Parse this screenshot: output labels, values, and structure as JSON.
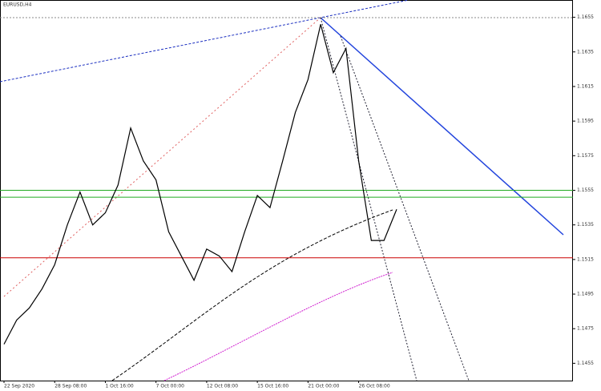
{
  "chart_data": {
    "type": "line",
    "title": "EURUSD,H4",
    "categories": [
      "22 Sep 2020",
      null,
      null,
      null,
      "28 Sep 08:00",
      null,
      null,
      null,
      "1 Oct 16:00",
      null,
      null,
      null,
      "7 Oct 00:00",
      null,
      null,
      null,
      "12 Oct 08:00",
      null,
      null,
      null,
      "15 Oct 16:00",
      null,
      null,
      null,
      "21 Oct 00:00",
      null,
      null,
      null,
      "26 Oct 08:00",
      null,
      null,
      null
    ],
    "series": [
      {
        "name": "Close",
        "color": "#000000",
        "values": [
          1.1466,
          1.148,
          1.1487,
          1.1498,
          1.1512,
          1.1535,
          1.1554,
          1.1535,
          1.1542,
          1.1558,
          1.1591,
          1.1572,
          1.1561,
          1.1531,
          1.1517,
          1.1503,
          1.1521,
          1.1517,
          1.1508,
          1.1531,
          1.1552,
          1.1545,
          1.1572,
          1.16,
          1.1619,
          1.1651,
          1.1623,
          1.1637,
          1.1572,
          1.1526,
          1.1526,
          1.1544
        ]
      }
    ],
    "levels": [
      {
        "value": 1.1555,
        "color": "#22aa22"
      },
      {
        "value": 1.1551,
        "color": "#22aa22"
      },
      {
        "value": 1.1516,
        "color": "#cc0000"
      }
    ],
    "ylim": [
      1.1445,
      1.1665
    ],
    "yticks": [
      1.1455,
      1.1475,
      1.1495,
      1.1515,
      1.1535,
      1.1555,
      1.1575,
      1.1595,
      1.1615,
      1.1635,
      1.1655
    ],
    "grid": false
  }
}
